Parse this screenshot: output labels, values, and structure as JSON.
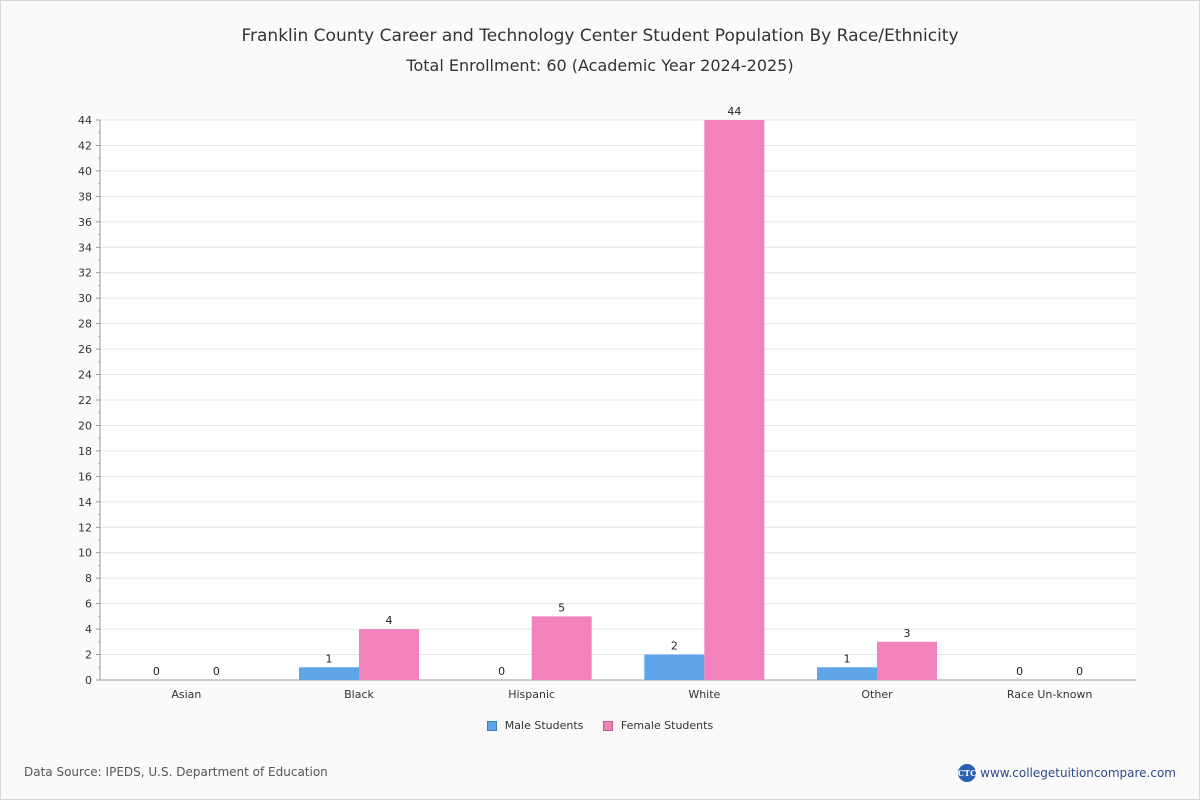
{
  "chart_data": {
    "type": "bar",
    "title": "Franklin County Career and Technology Center Student Population By Race/Ethnicity",
    "subtitle": "Total Enrollment: 60 (Academic Year 2024-2025)",
    "categories": [
      "Asian",
      "Black",
      "Hispanic",
      "White",
      "Other",
      "Race Un-known"
    ],
    "series": [
      {
        "name": "Male Students",
        "color": "#5da5e8",
        "values": [
          0,
          1,
          0,
          2,
          1,
          0
        ]
      },
      {
        "name": "Female Students",
        "color": "#f282bc",
        "values": [
          0,
          4,
          5,
          44,
          3,
          0
        ]
      }
    ],
    "ylim": [
      0,
      44
    ],
    "yticks": [
      0,
      2,
      4,
      6,
      8,
      10,
      12,
      14,
      16,
      18,
      20,
      22,
      24,
      26,
      28,
      30,
      32,
      34,
      36,
      38,
      40,
      42,
      44
    ],
    "grid": true,
    "legend_position": "bottom-center"
  },
  "footer": {
    "source": "Data Source: IPEDS, U.S. Department of Education",
    "site": "www.collegetuitioncompare.com",
    "logo_text": "CTC"
  }
}
